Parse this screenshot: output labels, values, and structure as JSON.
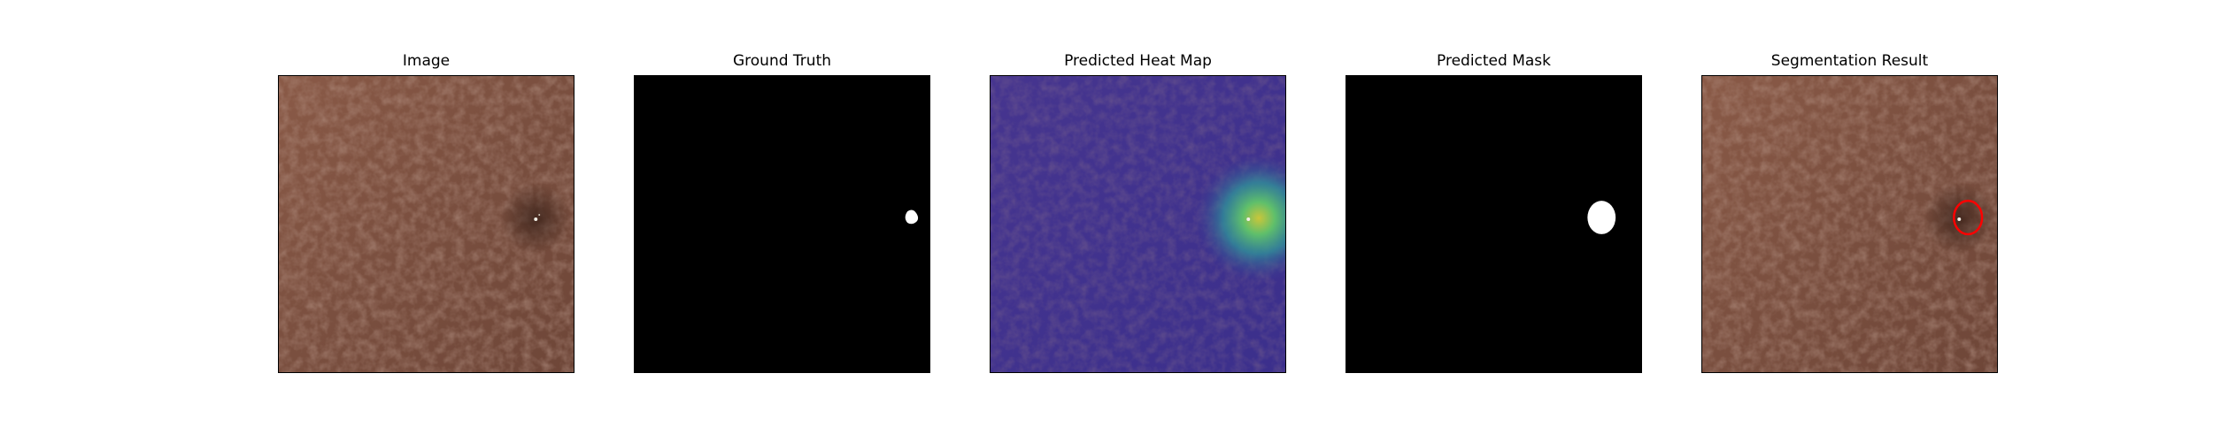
{
  "panels": [
    {
      "title": "Image"
    },
    {
      "title": "Ground Truth"
    },
    {
      "title": "Predicted Heat Map"
    },
    {
      "title": "Predicted Mask"
    },
    {
      "title": "Segmentation Result"
    }
  ],
  "colors": {
    "leather": "#7b5040",
    "background": "#000000",
    "mask": "#ffffff",
    "heat_low": "#3a2f8a",
    "heat_high": "#c7d33a",
    "contour": "#ff0000"
  }
}
